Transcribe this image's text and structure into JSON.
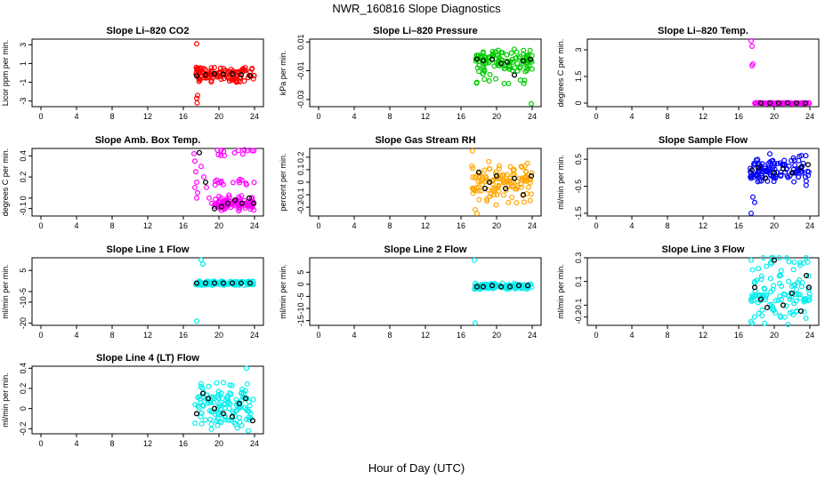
{
  "title": "NWR_160816  Slope Diagnostics",
  "xlabel": "Hour of Day (UTC)",
  "chart_data": [
    {
      "type": "scatter",
      "title": "Slope Li–820 CO2",
      "ylabel": "Licor ppm per min.",
      "color": "#ff0000",
      "xlim": [
        -1,
        25
      ],
      "ylim": [
        -3.6,
        3.6
      ],
      "xticks": [
        0,
        4,
        8,
        12,
        16,
        20,
        24
      ],
      "yticks": [
        3,
        1,
        -1,
        -3
      ],
      "spread": 0.7,
      "xstart": 17.3,
      "xend": 24.0,
      "seed": 11,
      "outliers": [
        [
          17.5,
          3.1
        ],
        [
          17.5,
          -2.7
        ],
        [
          17.55,
          -3.2
        ],
        [
          17.6,
          -2.4
        ]
      ],
      "black": [
        [
          17.5,
          -0.3
        ],
        [
          18.5,
          -0.2
        ],
        [
          19.5,
          -0.1
        ],
        [
          20.5,
          -0.15
        ],
        [
          21.5,
          -0.1
        ],
        [
          22.5,
          -0.2
        ],
        [
          23.5,
          -0.3
        ]
      ]
    },
    {
      "type": "scatter",
      "title": "Slope Li–820 Pressure",
      "ylabel": "kPa per min.",
      "color": "#00cc00",
      "xlim": [
        -1,
        25
      ],
      "ylim": [
        -0.035,
        0.012
      ],
      "xticks": [
        0,
        4,
        8,
        12,
        16,
        20,
        24
      ],
      "yticks": [
        0.01,
        -0.01,
        -0.03
      ],
      "spread": 0.007,
      "xstart": 17.5,
      "xend": 24.0,
      "seed": 23,
      "outliers": [
        [
          23.9,
          -0.033
        ],
        [
          18.5,
          -0.012
        ]
      ],
      "black": [
        [
          17.8,
          -0.002
        ],
        [
          18.5,
          -0.003
        ],
        [
          19.5,
          -0.002
        ],
        [
          20.5,
          -0.005
        ],
        [
          21.2,
          -0.004
        ],
        [
          22.0,
          -0.013
        ],
        [
          23.0,
          -0.003
        ],
        [
          23.8,
          -0.002
        ]
      ]
    },
    {
      "type": "scatter",
      "title": "Slope Li–820 Temp.",
      "ylabel": "degrees C per min.",
      "color": "#ff00ff",
      "xlim": [
        -1,
        25
      ],
      "ylim": [
        -0.2,
        3.6
      ],
      "xticks": [
        0,
        4,
        8,
        12,
        16,
        20,
        24
      ],
      "yticks": [
        0.0,
        1.5,
        3.0
      ],
      "spread": 0.02,
      "xstart": 17.8,
      "xend": 24.0,
      "seed": 5,
      "outliers": [
        [
          17.4,
          3.5
        ],
        [
          17.5,
          3.2
        ],
        [
          17.5,
          2.1
        ],
        [
          17.6,
          2.2
        ]
      ],
      "black": [
        [
          18.5,
          0.0
        ],
        [
          19.5,
          0.0
        ],
        [
          20.5,
          0.0
        ],
        [
          21.5,
          0.0
        ],
        [
          22.5,
          0.0
        ],
        [
          23.5,
          0.0
        ]
      ]
    },
    {
      "type": "scatter",
      "title": "Slope Amb. Box Temp.",
      "ylabel": "degrees C per min.",
      "color": "#ff00ff",
      "xlim": [
        -1,
        25
      ],
      "ylim": [
        -0.17,
        0.47
      ],
      "xticks": [
        0,
        4,
        8,
        12,
        16,
        20,
        24
      ],
      "yticks": [
        0.4,
        0.2,
        0.0,
        -0.1
      ],
      "spread": 0.03,
      "xstart": 19.5,
      "xend": 24.0,
      "seed": 31,
      "outliers": [
        [
          17.2,
          0.42
        ],
        [
          17.3,
          0.35
        ],
        [
          17.4,
          0.25
        ],
        [
          17.5,
          0.15
        ],
        [
          17.6,
          0.05
        ],
        [
          18.0,
          0.3
        ],
        [
          18.3,
          0.2
        ],
        [
          18.6,
          0.1
        ],
        [
          18.9,
          0.0
        ],
        [
          19.2,
          -0.05
        ],
        [
          17.3,
          0.1
        ],
        [
          17.5,
          0.0
        ]
      ],
      "black": [
        [
          17.8,
          0.43
        ],
        [
          18.5,
          0.15
        ],
        [
          19.5,
          -0.1
        ],
        [
          20.3,
          -0.08
        ],
        [
          21.0,
          -0.05
        ],
        [
          21.8,
          -0.02
        ],
        [
          22.6,
          -0.05
        ],
        [
          23.4,
          0.0
        ],
        [
          23.9,
          -0.05
        ]
      ]
    },
    {
      "type": "scatter",
      "title": "Slope Gas Stream RH",
      "ylabel": "percent per min.",
      "color": "#ffa500",
      "xlim": [
        -1,
        25
      ],
      "ylim": [
        -0.27,
        0.27
      ],
      "xticks": [
        0,
        4,
        8,
        12,
        16,
        20,
        24
      ],
      "yticks": [
        0.2,
        0.1,
        0.0,
        -0.1,
        -0.2
      ],
      "spread": 0.1,
      "xstart": 17.2,
      "xend": 24.0,
      "seed": 47,
      "outliers": [
        [
          17.6,
          -0.22
        ],
        [
          17.8,
          -0.25
        ],
        [
          17.3,
          0.25
        ]
      ],
      "black": [
        [
          18.0,
          0.08
        ],
        [
          18.7,
          -0.05
        ],
        [
          19.2,
          0.0
        ],
        [
          20.0,
          0.05
        ],
        [
          21.0,
          -0.05
        ],
        [
          22.0,
          0.03
        ],
        [
          23.0,
          -0.1
        ],
        [
          23.9,
          0.05
        ]
      ]
    },
    {
      "type": "scatter",
      "title": "Slope Sample Flow",
      "ylabel": "ml/min per min.",
      "color": "#0000ff",
      "xlim": [
        -1,
        25
      ],
      "ylim": [
        -1.6,
        0.9
      ],
      "xticks": [
        0,
        4,
        8,
        12,
        16,
        20,
        24
      ],
      "yticks": [
        0.5,
        -0.5,
        -1.5
      ],
      "spread": 0.35,
      "xstart": 17.3,
      "xend": 24.0,
      "seed": 59,
      "outliers": [
        [
          17.4,
          -1.5
        ],
        [
          17.6,
          -0.9
        ],
        [
          17.8,
          -1.1
        ],
        [
          19.5,
          0.7
        ]
      ],
      "black": [
        [
          17.5,
          0.1
        ],
        [
          18.2,
          0.2
        ],
        [
          19.0,
          -0.2
        ],
        [
          20.0,
          0.0
        ],
        [
          21.0,
          0.15
        ],
        [
          22.0,
          0.0
        ],
        [
          23.0,
          0.2
        ],
        [
          23.8,
          0.3
        ]
      ]
    },
    {
      "type": "scatter",
      "title": "Slope Line 1 Flow",
      "ylabel": "ml/min per min.",
      "color": "#00eeee",
      "xlim": [
        -1,
        25
      ],
      "ylim": [
        -21,
        11
      ],
      "xticks": [
        0,
        4,
        8,
        12,
        16,
        20,
        24
      ],
      "yticks": [
        5,
        -5,
        -10,
        -20
      ],
      "spread": 1.0,
      "xstart": 17.3,
      "xend": 24.0,
      "seed": 71,
      "outliers": [
        [
          17.5,
          -19
        ],
        [
          18.0,
          10
        ],
        [
          18.2,
          8
        ]
      ],
      "black": [
        [
          17.5,
          -1
        ],
        [
          18.5,
          -1
        ],
        [
          19.5,
          -1
        ],
        [
          20.5,
          -1
        ],
        [
          21.5,
          -1
        ],
        [
          22.5,
          -1
        ],
        [
          23.5,
          -1
        ]
      ]
    },
    {
      "type": "scatter",
      "title": "Slope Line 2 Flow",
      "ylabel": "ml/min per min.",
      "color": "#00eeee",
      "xlim": [
        -1,
        25
      ],
      "ylim": [
        -17,
        11
      ],
      "xticks": [
        0,
        4,
        8,
        12,
        16,
        20,
        24
      ],
      "yticks": [
        5,
        0,
        -5,
        -10,
        -15
      ],
      "spread": 1.0,
      "xstart": 17.5,
      "xend": 24.0,
      "seed": 83,
      "outliers": [
        [
          17.6,
          -16
        ],
        [
          17.5,
          10
        ]
      ],
      "black": [
        [
          17.8,
          -1
        ],
        [
          18.5,
          -1
        ],
        [
          19.5,
          -0.5
        ],
        [
          20.5,
          -1
        ],
        [
          21.5,
          -1
        ],
        [
          22.5,
          -0.5
        ],
        [
          23.5,
          -0.5
        ]
      ]
    },
    {
      "type": "scatter",
      "title": "Slope Line 3 Flow",
      "ylabel": "ml/min per min.",
      "color": "#00eeee",
      "xlim": [
        -1,
        25
      ],
      "ylim": [
        -0.27,
        0.3
      ],
      "xticks": [
        0,
        4,
        8,
        12,
        16,
        20,
        24
      ],
      "yticks": [
        0.3,
        0.1,
        -0.1,
        -0.2
      ],
      "spread": 0.12,
      "xstart": 17.3,
      "xend": 24.0,
      "seed": 97,
      "outliers": [
        [
          17.4,
          0.28
        ],
        [
          17.5,
          -0.25
        ]
      ],
      "black": [
        [
          17.8,
          0.05
        ],
        [
          18.5,
          -0.05
        ],
        [
          19.2,
          -0.12
        ],
        [
          20.0,
          0.28
        ],
        [
          21.0,
          -0.1
        ],
        [
          22.0,
          0.0
        ],
        [
          23.0,
          -0.15
        ],
        [
          23.9,
          0.05
        ],
        [
          23.6,
          0.15
        ]
      ]
    },
    {
      "type": "scatter",
      "title": "Slope Line 4 (LT) Flow",
      "ylabel": "ml/min per min.",
      "color": "#00eeee",
      "xlim": [
        -1,
        25
      ],
      "ylim": [
        -0.25,
        0.42
      ],
      "xticks": [
        0,
        4,
        8,
        12,
        16,
        20,
        24
      ],
      "yticks": [
        0.4,
        0.2,
        0.0,
        -0.2
      ],
      "spread": 0.12,
      "xstart": 17.3,
      "xend": 24.0,
      "seed": 101,
      "outliers": [
        [
          23.1,
          0.4
        ],
        [
          23.3,
          -0.22
        ]
      ],
      "black": [
        [
          17.5,
          -0.05
        ],
        [
          18.2,
          0.15
        ],
        [
          18.8,
          0.1
        ],
        [
          19.5,
          0.0
        ],
        [
          20.5,
          -0.05
        ],
        [
          21.5,
          -0.08
        ],
        [
          22.3,
          0.05
        ],
        [
          23.0,
          0.1
        ],
        [
          23.8,
          -0.12
        ]
      ]
    }
  ]
}
